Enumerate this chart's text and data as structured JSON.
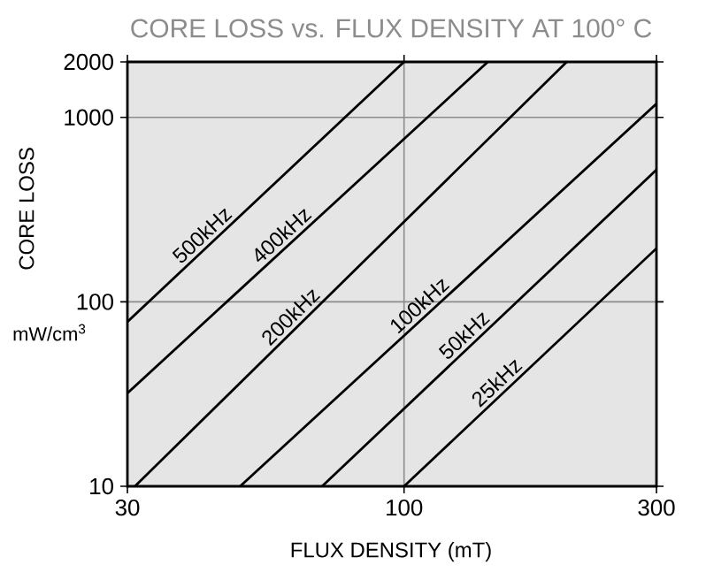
{
  "chart_data": {
    "type": "line",
    "title": "CORE LOSS vs. FLUX DENSITY AT 100° C",
    "xlabel": "FLUX DENSITY (mT)",
    "ylabel": "CORE LOSS",
    "annotations": [
      "mW/cm$^{3}$"
    ],
    "log": "xy",
    "grid": true,
    "legend": false,
    "marker": "none",
    "line_style": "solid",
    "xlim": [
      30,
      300
    ],
    "ylim": [
      10,
      2000
    ],
    "xticks": [
      30,
      100,
      300
    ],
    "yticks": [
      10,
      100,
      1000,
      2000
    ],
    "series": [
      {
        "name": "500kHz",
        "color": "#000000",
        "x": [
          30,
          100
        ],
        "values": [
          78,
          2000
        ]
      },
      {
        "name": "400kHz",
        "color": "#000000",
        "x": [
          30,
          144
        ],
        "values": [
          32,
          2000
        ]
      },
      {
        "name": "200kHz",
        "color": "#000000",
        "x": [
          31,
          203
        ],
        "values": [
          10,
          2000
        ]
      },
      {
        "name": "100kHz",
        "color": "#000000",
        "x": [
          49,
          300
        ],
        "values": [
          10,
          1186
        ]
      },
      {
        "name": "50kHz",
        "color": "#000000",
        "x": [
          70,
          300
        ],
        "values": [
          10,
          520
        ]
      },
      {
        "name": "25kHz",
        "color": "#000000",
        "x": [
          100,
          300
        ],
        "values": [
          10,
          195
        ]
      }
    ]
  }
}
